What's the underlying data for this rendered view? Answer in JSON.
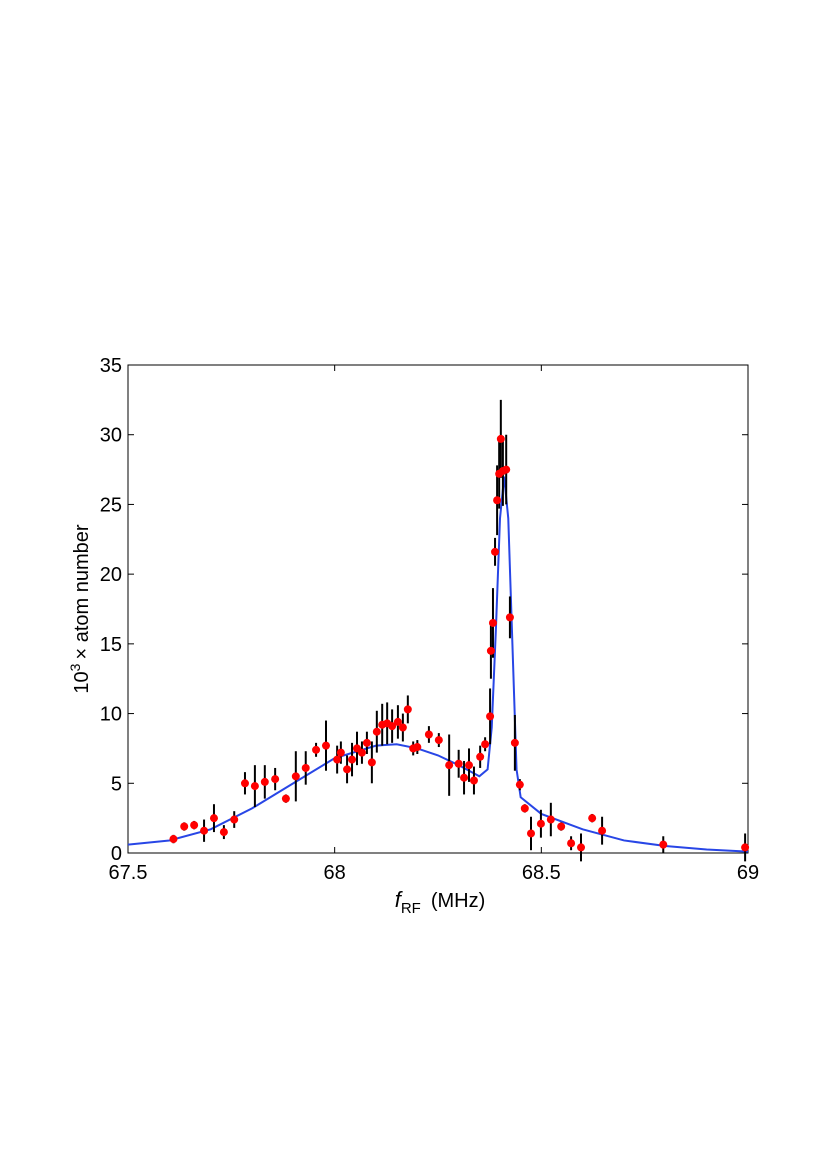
{
  "chart_data": {
    "type": "scatter",
    "x_label_symbol": "f",
    "x_label_subscript": "RF",
    "x_label_unit": "(MHz)",
    "y_label_base": "10",
    "y_label_exponent": "3",
    "y_label_rest": "× atom number",
    "xlim": [
      67.5,
      69
    ],
    "xticks": [
      67.5,
      68,
      68.5,
      69
    ],
    "ylim": [
      0,
      35
    ],
    "yticks": [
      0,
      5,
      10,
      15,
      20,
      25,
      30,
      35
    ],
    "points": {
      "color": "#ff0000",
      "error_color": "#000000",
      "x": [
        67.61,
        67.636,
        67.66,
        67.684,
        67.708,
        67.732,
        67.757,
        67.783,
        67.807,
        67.831,
        67.856,
        67.882,
        67.906,
        67.93,
        67.955,
        67.979,
        68.006,
        68.015,
        68.03,
        68.042,
        68.054,
        68.066,
        68.078,
        68.09,
        68.102,
        68.115,
        68.127,
        68.139,
        68.153,
        68.165,
        68.177,
        68.19,
        68.2,
        68.228,
        68.252,
        68.277,
        68.3,
        68.313,
        68.325,
        68.337,
        68.352,
        68.364,
        68.376,
        68.378,
        68.383,
        68.388,
        68.393,
        68.398,
        68.402,
        68.407,
        68.415,
        68.424,
        68.436,
        68.448,
        68.46,
        68.475,
        68.499,
        68.523,
        68.548,
        68.572,
        68.596,
        68.623,
        68.647,
        68.795,
        68.993
      ],
      "values": [
        1.0,
        1.9,
        2.0,
        1.6,
        2.5,
        1.5,
        2.4,
        5.0,
        4.8,
        5.1,
        5.3,
        3.9,
        5.5,
        6.1,
        7.4,
        7.7,
        6.7,
        7.2,
        6.0,
        6.7,
        7.5,
        7.2,
        7.9,
        6.5,
        8.7,
        9.2,
        9.3,
        9.1,
        9.4,
        9.0,
        10.3,
        7.5,
        7.6,
        8.5,
        8.1,
        6.3,
        6.4,
        5.4,
        6.3,
        5.2,
        6.9,
        7.8,
        9.8,
        14.5,
        16.5,
        21.6,
        25.3,
        27.2,
        29.7,
        27.4,
        27.5,
        16.9,
        7.9,
        4.9,
        3.2,
        1.4,
        2.1,
        2.4,
        1.9,
        0.7,
        0.4,
        2.5,
        1.6,
        0.6,
        0.4
      ],
      "errors": [
        0.3,
        0.3,
        0.3,
        0.8,
        1.0,
        0.5,
        0.6,
        0.8,
        1.5,
        1.2,
        0.8,
        0.3,
        1.8,
        1.2,
        0.5,
        1.8,
        1.0,
        0.8,
        1.0,
        1.2,
        1.2,
        0.8,
        0.8,
        1.5,
        1.5,
        1.5,
        1.5,
        1.2,
        1.2,
        1.0,
        1.0,
        0.5,
        0.5,
        0.6,
        0.5,
        2.2,
        1.0,
        1.2,
        1.2,
        1.0,
        0.8,
        0.5,
        2.0,
        2.0,
        2.5,
        1.0,
        2.5,
        2.5,
        2.8,
        2.5,
        2.5,
        1.5,
        2.0,
        0.4,
        0.3,
        1.2,
        1.0,
        1.2,
        0.3,
        0.5,
        1.0,
        0.3,
        1.0,
        0.6,
        1.0
      ]
    },
    "fit": {
      "color": "#2846e6",
      "x": [
        67.5,
        67.6,
        67.7,
        67.8,
        67.9,
        68.0,
        68.1,
        68.15,
        68.2,
        68.25,
        68.3,
        68.35,
        68.37,
        68.38,
        68.39,
        68.4,
        68.41,
        68.42,
        68.43,
        68.44,
        68.45,
        68.5,
        68.6,
        68.7,
        68.8,
        68.9,
        69.0
      ],
      "values": [
        0.6,
        0.9,
        1.7,
        3.2,
        5.0,
        6.8,
        7.7,
        7.8,
        7.5,
        7.0,
        6.3,
        5.5,
        6.0,
        9.0,
        16.0,
        24.0,
        27.0,
        24.0,
        15.0,
        6.0,
        4.0,
        2.8,
        1.7,
        0.9,
        0.5,
        0.25,
        0.1
      ]
    }
  }
}
